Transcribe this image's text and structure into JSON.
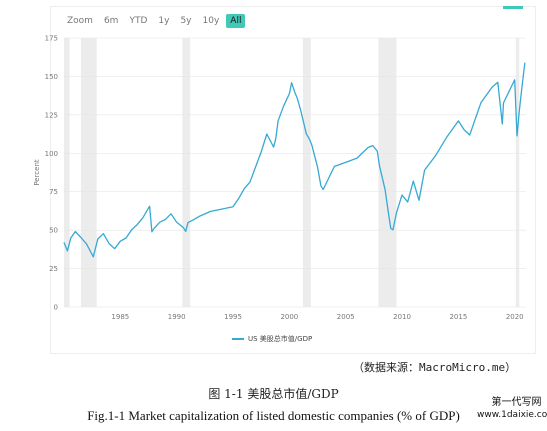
{
  "zoom_bar": {
    "label": "Zoom",
    "buttons": [
      "6m",
      "YTD",
      "1y",
      "5y",
      "10y",
      "All"
    ],
    "active": "All"
  },
  "colors": {
    "series": "#36a9d3",
    "recession_band": "#ececec",
    "grid": "#e6e6e6",
    "active_button": "#3fc9b6"
  },
  "chart_data": {
    "type": "line",
    "title": "",
    "xlabel": "",
    "ylabel": "Percent",
    "xlim": [
      1980,
      2021
    ],
    "ylim": [
      0,
      175
    ],
    "x_ticks": [
      1985,
      1990,
      1995,
      2000,
      2005,
      2010,
      2015,
      2020
    ],
    "y_ticks": [
      0,
      25,
      50,
      75,
      100,
      125,
      150,
      175
    ],
    "grid": "horizontal",
    "legend_position": "bottom",
    "recession_bands": [
      [
        1980.0,
        1980.5
      ],
      [
        1981.5,
        1982.9
      ],
      [
        1990.5,
        1991.2
      ],
      [
        2001.2,
        2001.9
      ],
      [
        2007.9,
        2009.5
      ],
      [
        2020.1,
        2020.4
      ]
    ],
    "series": [
      {
        "name": "US 美股总市值/GDP",
        "x": [
          1980.0,
          1980.3,
          1980.6,
          1981.0,
          1981.5,
          1982.0,
          1982.6,
          1983.0,
          1983.5,
          1984.0,
          1984.5,
          1985.0,
          1985.5,
          1986.0,
          1986.5,
          1987.0,
          1987.6,
          1987.8,
          1988.0,
          1988.5,
          1989.0,
          1989.5,
          1990.0,
          1990.6,
          1990.8,
          1991.0,
          1991.5,
          1992.0,
          1993.0,
          1994.0,
          1995.0,
          1995.5,
          1996.0,
          1996.5,
          1997.0,
          1997.5,
          1998.0,
          1998.6,
          1998.8,
          1999.0,
          1999.5,
          2000.0,
          2000.2,
          2000.5,
          2000.7,
          2001.0,
          2001.5,
          2001.8,
          2002.0,
          2002.5,
          2002.8,
          2003.0,
          2003.5,
          2004.0,
          2005.0,
          2006.0,
          2007.0,
          2007.4,
          2007.8,
          2008.0,
          2008.5,
          2008.8,
          2009.0,
          2009.2,
          2009.5,
          2010.0,
          2010.5,
          2011.0,
          2011.5,
          2012.0,
          2013.0,
          2014.0,
          2015.0,
          2015.5,
          2016.0,
          2016.5,
          2017.0,
          2018.0,
          2018.5,
          2018.9,
          2019.0,
          2019.5,
          2020.0,
          2020.2,
          2020.4,
          2020.7,
          2020.9
        ],
        "y": [
          42,
          36,
          44,
          48,
          44,
          40,
          32,
          44,
          48,
          42,
          39,
          44,
          46,
          51,
          54,
          58,
          65,
          48,
          50,
          54,
          56,
          60,
          55,
          52,
          50,
          56,
          58,
          60,
          63,
          64,
          65,
          70,
          76,
          80,
          90,
          100,
          112,
          104,
          110,
          122,
          132,
          140,
          147,
          140,
          136,
          128,
          112,
          108,
          104,
          90,
          78,
          76,
          84,
          92,
          95,
          98,
          105,
          106,
          102,
          92,
          76,
          60,
          50,
          49,
          60,
          72,
          68,
          82,
          70,
          90,
          100,
          112,
          122,
          116,
          112,
          122,
          132,
          142,
          145,
          118,
          132,
          140,
          148,
          112,
          128,
          148,
          159
        ]
      }
    ]
  },
  "source_note": "（数据来源：MacroMicro.me）",
  "caption_cn": "图 1-1  美股总市值/GDP",
  "caption_en": "Fig.1-1 Market capitalization of listed domestic companies (% of GDP)",
  "watermark": {
    "line1": "第一代写网",
    "line2": "www.1daixie.com"
  }
}
